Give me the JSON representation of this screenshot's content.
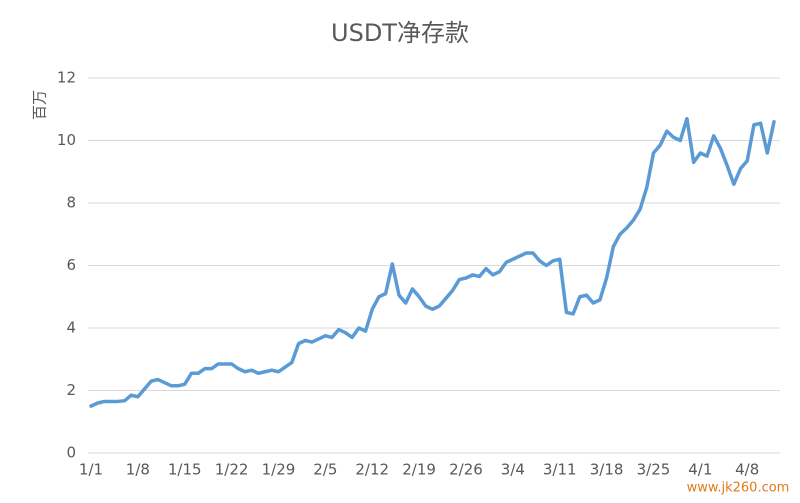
{
  "chart_data": {
    "type": "line",
    "title": "USDT净存款",
    "y_label": "百万",
    "categories": [
      "1/1",
      null,
      null,
      null,
      null,
      null,
      null,
      "1/8",
      null,
      null,
      null,
      null,
      null,
      null,
      "1/15",
      null,
      null,
      null,
      null,
      null,
      null,
      "1/22",
      null,
      null,
      null,
      null,
      null,
      null,
      "1/29",
      null,
      null,
      null,
      null,
      null,
      null,
      "2/5",
      null,
      null,
      null,
      null,
      null,
      null,
      "2/12",
      null,
      null,
      null,
      null,
      null,
      null,
      "2/19",
      null,
      null,
      null,
      null,
      null,
      null,
      "2/26",
      null,
      null,
      null,
      null,
      null,
      null,
      "3/4",
      null,
      null,
      null,
      null,
      null,
      null,
      "3/11",
      null,
      null,
      null,
      null,
      null,
      null,
      "3/18",
      null,
      null,
      null,
      null,
      null,
      null,
      "3/25",
      null,
      null,
      null,
      null,
      null,
      null,
      "4/1",
      null,
      null,
      null,
      null,
      null,
      null,
      "4/8",
      null,
      null,
      null,
      null
    ],
    "series": [
      {
        "name": "USDT净存款",
        "color": "#5b9bd5",
        "values": [
          1.5,
          1.6,
          1.65,
          1.65,
          1.65,
          1.67,
          1.85,
          1.8,
          2.05,
          2.3,
          2.35,
          2.25,
          2.15,
          2.15,
          2.2,
          2.55,
          2.55,
          2.7,
          2.7,
          2.85,
          2.85,
          2.85,
          2.7,
          2.6,
          2.65,
          2.55,
          2.6,
          2.65,
          2.6,
          2.75,
          2.9,
          3.5,
          3.6,
          3.55,
          3.65,
          3.75,
          3.7,
          3.95,
          3.85,
          3.7,
          4.0,
          3.9,
          4.6,
          5.0,
          5.1,
          6.05,
          5.05,
          4.8,
          5.25,
          5.0,
          4.7,
          4.6,
          4.7,
          4.95,
          5.2,
          5.55,
          5.6,
          5.7,
          5.65,
          5.9,
          5.7,
          5.8,
          6.1,
          6.2,
          6.3,
          6.4,
          6.4,
          6.15,
          6.0,
          6.15,
          6.2,
          4.5,
          4.45,
          5.0,
          5.05,
          4.8,
          4.9,
          5.6,
          6.6,
          7.0,
          7.2,
          7.45,
          7.8,
          8.5,
          9.6,
          9.85,
          10.3,
          10.1,
          10.0,
          10.7,
          9.3,
          9.6,
          9.5,
          10.15,
          9.75,
          9.2,
          8.6,
          9.1,
          9.35,
          10.5,
          10.55,
          9.6,
          10.6
        ]
      }
    ],
    "ylim": [
      0,
      12
    ],
    "yticks": [
      0,
      2,
      4,
      6,
      8,
      10,
      12
    ],
    "grid": true,
    "watermark": "www.jk260.com"
  }
}
